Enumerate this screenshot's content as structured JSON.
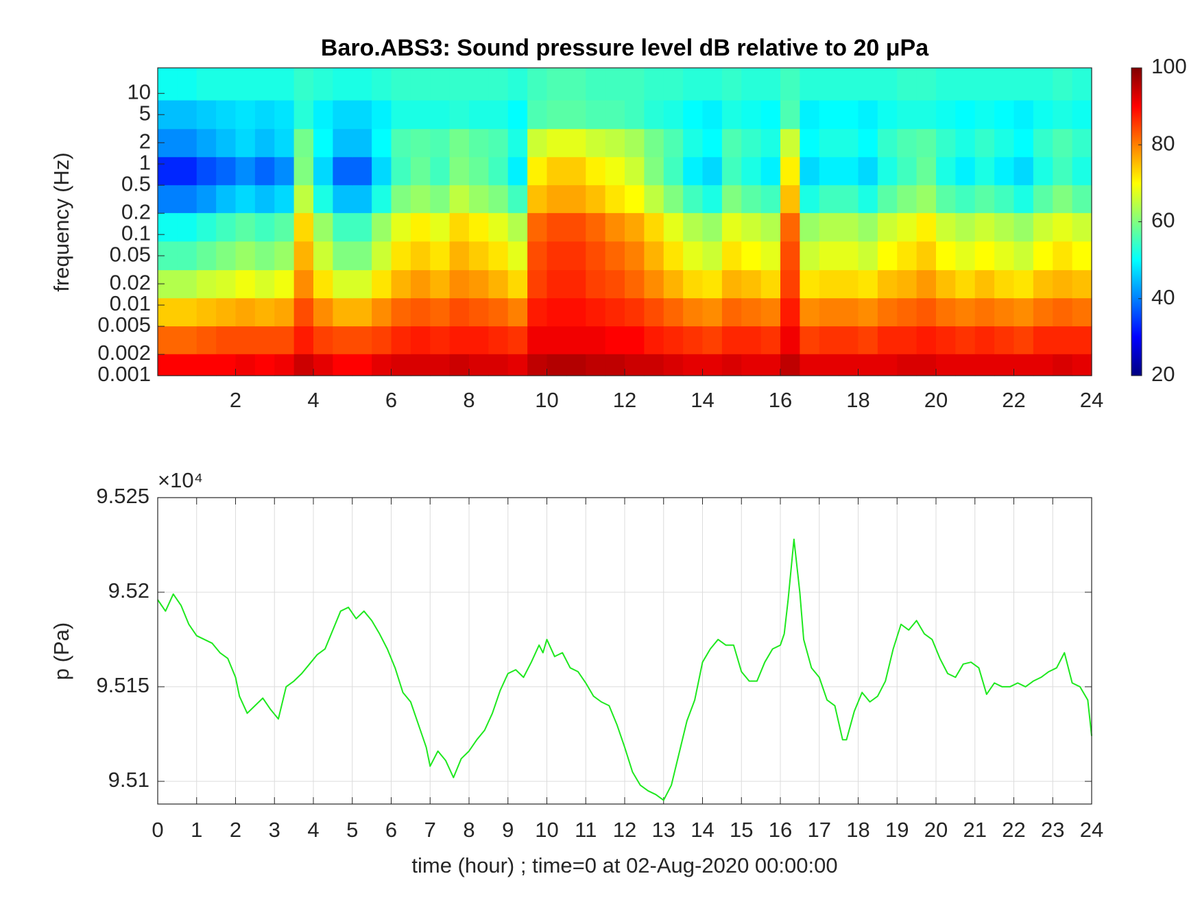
{
  "chart_data": [
    {
      "type": "heatmap",
      "title": "Baro.ABS3: Sound pressure level dB relative to 20 μPa",
      "y_label": "frequency (Hz)",
      "colormap": "jet",
      "ylog": true,
      "xlim": [
        0,
        24
      ],
      "xticks": [
        2,
        4,
        6,
        8,
        10,
        12,
        14,
        16,
        18,
        20,
        22,
        24
      ],
      "ylim": [
        0.001,
        23
      ],
      "yticks": [
        0.001,
        0.002,
        0.005,
        0.01,
        0.02,
        0.05,
        0.1,
        0.2,
        0.5,
        1,
        2,
        5,
        10
      ],
      "clim": [
        20,
        100
      ],
      "cticks": [
        20,
        40,
        60,
        80,
        100
      ],
      "x": [
        0.25,
        0.75,
        1.25,
        1.75,
        2.25,
        2.75,
        3.25,
        3.75,
        4.25,
        4.75,
        5.25,
        5.75,
        6.25,
        6.75,
        7.25,
        7.75,
        8.25,
        8.75,
        9.25,
        9.75,
        10.25,
        10.75,
        11.25,
        11.75,
        12.25,
        12.75,
        13.25,
        13.75,
        14.25,
        14.75,
        15.25,
        15.75,
        16.25,
        16.75,
        17.25,
        17.75,
        18.25,
        18.75,
        19.25,
        19.75,
        20.25,
        20.75,
        21.25,
        21.75,
        22.25,
        22.75,
        23.25,
        23.75
      ],
      "y": [
        0.0013,
        0.0032,
        0.008,
        0.02,
        0.05,
        0.13,
        0.32,
        0.8,
        2,
        5,
        13
      ],
      "z": [
        [
          90,
          90,
          90,
          90,
          91,
          90,
          91,
          94,
          92,
          90,
          90,
          92,
          93,
          93,
          93,
          94,
          93,
          93,
          92,
          95,
          96,
          96,
          95,
          95,
          94,
          94,
          93,
          92,
          92,
          93,
          92,
          92,
          95,
          92,
          92,
          92,
          92,
          92,
          93,
          93,
          92,
          92,
          92,
          92,
          92,
          92,
          93,
          92
        ],
        [
          82,
          82,
          83,
          84,
          84,
          84,
          84,
          88,
          85,
          84,
          84,
          85,
          87,
          88,
          87,
          88,
          88,
          87,
          86,
          91,
          91,
          91,
          91,
          90,
          90,
          88,
          87,
          86,
          85,
          87,
          87,
          86,
          91,
          85,
          86,
          86,
          85,
          87,
          87,
          88,
          87,
          86,
          87,
          86,
          85,
          87,
          87,
          87
        ],
        [
          74,
          74,
          75,
          76,
          77,
          76,
          77,
          84,
          79,
          76,
          76,
          79,
          82,
          83,
          82,
          84,
          83,
          82,
          80,
          88,
          89,
          89,
          88,
          87,
          86,
          84,
          82,
          80,
          79,
          82,
          81,
          80,
          88,
          79,
          80,
          80,
          79,
          81,
          82,
          83,
          81,
          80,
          81,
          80,
          79,
          81,
          82,
          81
        ],
        [
          64,
          64,
          66,
          67,
          69,
          67,
          69,
          79,
          72,
          67,
          67,
          72,
          76,
          78,
          76,
          79,
          78,
          76,
          73,
          85,
          87,
          87,
          85,
          84,
          82,
          79,
          76,
          73,
          72,
          76,
          75,
          73,
          85,
          72,
          73,
          73,
          72,
          75,
          76,
          78,
          75,
          73,
          75,
          73,
          72,
          75,
          76,
          75
        ],
        [
          56,
          56,
          58,
          60,
          62,
          60,
          62,
          76,
          66,
          60,
          60,
          66,
          72,
          74,
          72,
          76,
          74,
          72,
          68,
          84,
          86,
          86,
          84,
          82,
          80,
          76,
          72,
          68,
          66,
          72,
          70,
          68,
          84,
          66,
          68,
          68,
          66,
          70,
          72,
          74,
          70,
          68,
          70,
          68,
          66,
          70,
          72,
          70
        ],
        [
          51,
          51,
          53,
          55,
          57,
          55,
          57,
          73,
          62,
          55,
          55,
          62,
          68,
          71,
          68,
          73,
          71,
          68,
          64,
          82,
          84,
          84,
          82,
          79,
          77,
          73,
          68,
          64,
          62,
          68,
          66,
          64,
          82,
          62,
          64,
          64,
          62,
          66,
          68,
          71,
          66,
          64,
          66,
          64,
          62,
          66,
          68,
          66
        ],
        [
          40,
          40,
          42,
          45,
          47,
          45,
          47,
          65,
          52,
          45,
          45,
          52,
          60,
          62,
          60,
          65,
          62,
          60,
          55,
          75,
          77,
          77,
          75,
          72,
          70,
          65,
          60,
          55,
          52,
          60,
          57,
          55,
          75,
          52,
          55,
          55,
          52,
          57,
          60,
          62,
          57,
          55,
          57,
          55,
          52,
          57,
          60,
          57
        ],
        [
          33,
          33,
          36,
          38,
          41,
          38,
          41,
          60,
          47,
          38,
          38,
          47,
          55,
          58,
          55,
          60,
          58,
          55,
          49,
          71,
          74,
          74,
          71,
          69,
          66,
          60,
          55,
          49,
          47,
          55,
          52,
          49,
          71,
          47,
          49,
          49,
          47,
          52,
          55,
          58,
          52,
          49,
          52,
          49,
          47,
          52,
          55,
          52
        ],
        [
          41,
          41,
          43,
          45,
          47,
          45,
          47,
          59,
          50,
          45,
          45,
          50,
          56,
          57,
          56,
          59,
          57,
          56,
          52,
          66,
          68,
          68,
          66,
          65,
          63,
          59,
          56,
          52,
          50,
          56,
          54,
          52,
          66,
          50,
          52,
          52,
          50,
          54,
          56,
          57,
          54,
          52,
          54,
          52,
          50,
          54,
          56,
          54
        ],
        [
          45,
          45,
          46,
          47,
          48,
          47,
          48,
          53,
          49,
          47,
          47,
          49,
          52,
          52,
          52,
          53,
          52,
          52,
          50,
          56,
          57,
          57,
          56,
          56,
          55,
          53,
          52,
          50,
          49,
          52,
          51,
          50,
          56,
          49,
          50,
          50,
          49,
          51,
          52,
          52,
          51,
          50,
          51,
          50,
          49,
          51,
          52,
          51
        ],
        [
          51,
          51,
          52,
          52,
          52,
          52,
          52,
          54,
          53,
          52,
          52,
          53,
          54,
          54,
          54,
          54,
          54,
          54,
          53,
          55,
          56,
          56,
          55,
          55,
          55,
          54,
          54,
          53,
          53,
          54,
          53,
          53,
          55,
          53,
          53,
          53,
          53,
          53,
          54,
          54,
          53,
          53,
          53,
          53,
          53,
          53,
          54,
          53
        ]
      ]
    },
    {
      "type": "line",
      "x_label": "time (hour) ; time=0 at 02-Aug-2020 00:00:00",
      "y_label": "p (Pa)",
      "y_exponent_label": "×10⁴",
      "grid": true,
      "xlim": [
        0,
        24
      ],
      "xticks": [
        0,
        1,
        2,
        3,
        4,
        5,
        6,
        7,
        8,
        9,
        10,
        11,
        12,
        13,
        14,
        15,
        16,
        17,
        18,
        19,
        20,
        21,
        22,
        23,
        24
      ],
      "ylim": [
        95088,
        95250
      ],
      "yticks": [
        {
          "value": 95100,
          "label": "9.51"
        },
        {
          "value": 95150,
          "label": "9.515"
        },
        {
          "value": 95200,
          "label": "9.52"
        },
        {
          "value": 95250,
          "label": "9.525"
        }
      ],
      "x": [
        0,
        0.2,
        0.4,
        0.6,
        0.8,
        1,
        1.2,
        1.4,
        1.6,
        1.8,
        2,
        2.1,
        2.3,
        2.5,
        2.7,
        2.9,
        3.1,
        3.3,
        3.5,
        3.7,
        3.9,
        4.1,
        4.3,
        4.5,
        4.7,
        4.9,
        5.1,
        5.3,
        5.5,
        5.7,
        5.9,
        6.1,
        6.3,
        6.5,
        6.7,
        6.9,
        7,
        7.2,
        7.4,
        7.6,
        7.8,
        8,
        8.2,
        8.4,
        8.6,
        8.8,
        9,
        9.2,
        9.4,
        9.6,
        9.8,
        9.9,
        10,
        10.2,
        10.4,
        10.6,
        10.8,
        11,
        11.2,
        11.4,
        11.6,
        11.8,
        12,
        12.2,
        12.4,
        12.6,
        12.8,
        13,
        13.2,
        13.4,
        13.6,
        13.8,
        14,
        14.2,
        14.4,
        14.6,
        14.8,
        15,
        15.2,
        15.4,
        15.6,
        15.8,
        16,
        16.1,
        16.2,
        16.35,
        16.5,
        16.6,
        16.8,
        17,
        17.2,
        17.4,
        17.6,
        17.7,
        17.9,
        18.1,
        18.3,
        18.5,
        18.7,
        18.9,
        19.1,
        19.3,
        19.5,
        19.7,
        19.9,
        20.1,
        20.3,
        20.5,
        20.7,
        20.9,
        21.1,
        21.3,
        21.5,
        21.7,
        21.9,
        22.1,
        22.3,
        22.5,
        22.7,
        22.9,
        23.1,
        23.3,
        23.5,
        23.7,
        23.9,
        24
      ],
      "series": [
        {
          "color": "#1ee81e",
          "values": [
            95196,
            95190,
            95199,
            95193,
            95183,
            95177,
            95175,
            95173,
            95168,
            95165,
            95155,
            95145,
            95136,
            95140,
            95144,
            95138,
            95133,
            95150,
            95153,
            95157,
            95162,
            95167,
            95170,
            95180,
            95190,
            95192,
            95186,
            95190,
            95185,
            95178,
            95170,
            95160,
            95147,
            95142,
            95130,
            95118,
            95108,
            95116,
            95111,
            95102,
            95112,
            95116,
            95122,
            95127,
            95136,
            95148,
            95157,
            95159,
            95155,
            95163,
            95172,
            95168,
            95175,
            95166,
            95168,
            95160,
            95158,
            95152,
            95145,
            95142,
            95140,
            95130,
            95118,
            95105,
            95098,
            95095,
            95093,
            95090,
            95098,
            95115,
            95132,
            95143,
            95163,
            95170,
            95175,
            95172,
            95172,
            95158,
            95153,
            95153,
            95163,
            95170,
            95172,
            95178,
            95196,
            95228,
            95200,
            95175,
            95160,
            95155,
            95143,
            95140,
            95122,
            95122,
            95137,
            95147,
            95142,
            95145,
            95153,
            95170,
            95183,
            95180,
            95185,
            95178,
            95175,
            95165,
            95157,
            95155,
            95162,
            95163,
            95160,
            95146,
            95152,
            95150,
            95150,
            95152,
            95150,
            95153,
            95155,
            95158,
            95160,
            95168,
            95152,
            95150,
            95143,
            95124
          ]
        }
      ]
    }
  ]
}
